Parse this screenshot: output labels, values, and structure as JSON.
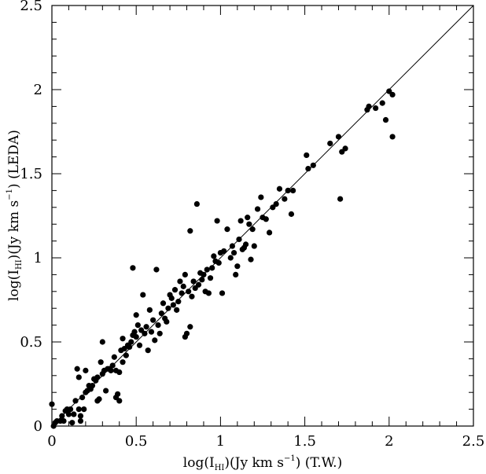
{
  "chart_data": {
    "type": "scatter",
    "title": "",
    "xlabel": {
      "prefix": "log(I",
      "sub": "HI",
      "middle": ")(Jy  km  s",
      "sup": "−1",
      "suffix": ")  (T.W.)"
    },
    "ylabel": {
      "prefix": "log(I",
      "sub": "HI",
      "middle": ")(Jy  km  s",
      "sup": "−1",
      "suffix": ")  (LEDA)"
    },
    "xlim": [
      0,
      2.5
    ],
    "ylim": [
      0,
      2.5
    ],
    "xticks": [
      "0",
      "0.5",
      "1",
      "1.5",
      "2",
      "2.5"
    ],
    "yticks": [
      "0",
      "0.5",
      "1",
      "1.5",
      "2",
      "2.5"
    ],
    "grid": false,
    "reference_line": {
      "from": [
        0,
        0
      ],
      "to": [
        2.5,
        2.5
      ]
    },
    "points": [
      [
        0.0,
        0.13
      ],
      [
        0.01,
        0.0
      ],
      [
        0.02,
        0.02
      ],
      [
        0.03,
        0.03
      ],
      [
        0.05,
        0.03
      ],
      [
        0.06,
        0.06
      ],
      [
        0.07,
        0.03
      ],
      [
        0.08,
        0.09
      ],
      [
        0.09,
        0.1
      ],
      [
        0.1,
        0.07
      ],
      [
        0.11,
        0.1
      ],
      [
        0.12,
        0.02
      ],
      [
        0.13,
        0.07
      ],
      [
        0.14,
        0.15
      ],
      [
        0.15,
        0.34
      ],
      [
        0.16,
        0.29
      ],
      [
        0.16,
        0.1
      ],
      [
        0.17,
        0.06
      ],
      [
        0.17,
        0.03
      ],
      [
        0.18,
        0.17
      ],
      [
        0.19,
        0.1
      ],
      [
        0.2,
        0.2
      ],
      [
        0.2,
        0.33
      ],
      [
        0.21,
        0.21
      ],
      [
        0.22,
        0.24
      ],
      [
        0.23,
        0.22
      ],
      [
        0.24,
        0.24
      ],
      [
        0.25,
        0.28
      ],
      [
        0.26,
        0.27
      ],
      [
        0.27,
        0.29
      ],
      [
        0.27,
        0.15
      ],
      [
        0.28,
        0.16
      ],
      [
        0.29,
        0.38
      ],
      [
        0.3,
        0.5
      ],
      [
        0.3,
        0.31
      ],
      [
        0.31,
        0.33
      ],
      [
        0.32,
        0.21
      ],
      [
        0.33,
        0.34
      ],
      [
        0.34,
        0.34
      ],
      [
        0.35,
        0.33
      ],
      [
        0.36,
        0.36
      ],
      [
        0.37,
        0.41
      ],
      [
        0.38,
        0.33
      ],
      [
        0.38,
        0.17
      ],
      [
        0.39,
        0.19
      ],
      [
        0.4,
        0.15
      ],
      [
        0.4,
        0.32
      ],
      [
        0.41,
        0.45
      ],
      [
        0.42,
        0.52
      ],
      [
        0.42,
        0.38
      ],
      [
        0.43,
        0.46
      ],
      [
        0.44,
        0.42
      ],
      [
        0.45,
        0.48
      ],
      [
        0.46,
        0.47
      ],
      [
        0.47,
        0.5
      ],
      [
        0.48,
        0.54
      ],
      [
        0.48,
        0.94
      ],
      [
        0.49,
        0.56
      ],
      [
        0.5,
        0.53
      ],
      [
        0.5,
        0.66
      ],
      [
        0.51,
        0.6
      ],
      [
        0.52,
        0.48
      ],
      [
        0.53,
        0.57
      ],
      [
        0.54,
        0.78
      ],
      [
        0.55,
        0.55
      ],
      [
        0.56,
        0.59
      ],
      [
        0.57,
        0.45
      ],
      [
        0.58,
        0.69
      ],
      [
        0.59,
        0.56
      ],
      [
        0.6,
        0.63
      ],
      [
        0.61,
        0.51
      ],
      [
        0.62,
        0.93
      ],
      [
        0.63,
        0.6
      ],
      [
        0.64,
        0.55
      ],
      [
        0.65,
        0.67
      ],
      [
        0.66,
        0.73
      ],
      [
        0.67,
        0.64
      ],
      [
        0.68,
        0.62
      ],
      [
        0.69,
        0.7
      ],
      [
        0.7,
        0.78
      ],
      [
        0.71,
        0.76
      ],
      [
        0.72,
        0.72
      ],
      [
        0.73,
        0.81
      ],
      [
        0.74,
        0.69
      ],
      [
        0.75,
        0.74
      ],
      [
        0.76,
        0.86
      ],
      [
        0.77,
        0.79
      ],
      [
        0.78,
        0.83
      ],
      [
        0.79,
        0.9
      ],
      [
        0.79,
        0.53
      ],
      [
        0.8,
        0.55
      ],
      [
        0.81,
        0.8
      ],
      [
        0.82,
        1.16
      ],
      [
        0.82,
        0.59
      ],
      [
        0.83,
        0.77
      ],
      [
        0.84,
        0.86
      ],
      [
        0.85,
        0.82
      ],
      [
        0.86,
        1.32
      ],
      [
        0.87,
        0.84
      ],
      [
        0.88,
        0.91
      ],
      [
        0.89,
        0.87
      ],
      [
        0.9,
        0.9
      ],
      [
        0.91,
        0.8
      ],
      [
        0.92,
        0.93
      ],
      [
        0.93,
        0.79
      ],
      [
        0.94,
        0.88
      ],
      [
        0.95,
        0.94
      ],
      [
        0.96,
        1.01
      ],
      [
        0.97,
        0.98
      ],
      [
        0.98,
        1.22
      ],
      [
        0.99,
        0.97
      ],
      [
        1.0,
        1.03
      ],
      [
        1.01,
        0.79
      ],
      [
        1.02,
        1.04
      ],
      [
        1.04,
        1.17
      ],
      [
        1.06,
        1.0
      ],
      [
        1.07,
        1.07
      ],
      [
        1.08,
        1.03
      ],
      [
        1.09,
        0.9
      ],
      [
        1.1,
        0.95
      ],
      [
        1.11,
        1.11
      ],
      [
        1.12,
        1.22
      ],
      [
        1.13,
        1.05
      ],
      [
        1.14,
        1.06
      ],
      [
        1.15,
        1.08
      ],
      [
        1.16,
        1.24
      ],
      [
        1.17,
        1.2
      ],
      [
        1.18,
        0.99
      ],
      [
        1.19,
        1.17
      ],
      [
        1.2,
        1.07
      ],
      [
        1.22,
        1.29
      ],
      [
        1.24,
        1.36
      ],
      [
        1.25,
        1.24
      ],
      [
        1.27,
        1.23
      ],
      [
        1.29,
        1.15
      ],
      [
        1.31,
        1.3
      ],
      [
        1.33,
        1.32
      ],
      [
        1.35,
        1.41
      ],
      [
        1.38,
        1.35
      ],
      [
        1.4,
        1.4
      ],
      [
        1.42,
        1.26
      ],
      [
        1.43,
        1.4
      ],
      [
        1.51,
        1.61
      ],
      [
        1.52,
        1.53
      ],
      [
        1.55,
        1.55
      ],
      [
        1.65,
        1.68
      ],
      [
        1.7,
        1.72
      ],
      [
        1.71,
        1.35
      ],
      [
        1.72,
        1.63
      ],
      [
        1.74,
        1.65
      ],
      [
        1.87,
        1.88
      ],
      [
        1.88,
        1.9
      ],
      [
        1.92,
        1.89
      ],
      [
        1.96,
        1.92
      ],
      [
        1.98,
        1.82
      ],
      [
        2.0,
        1.99
      ],
      [
        2.02,
        1.97
      ],
      [
        2.02,
        1.72
      ]
    ]
  }
}
